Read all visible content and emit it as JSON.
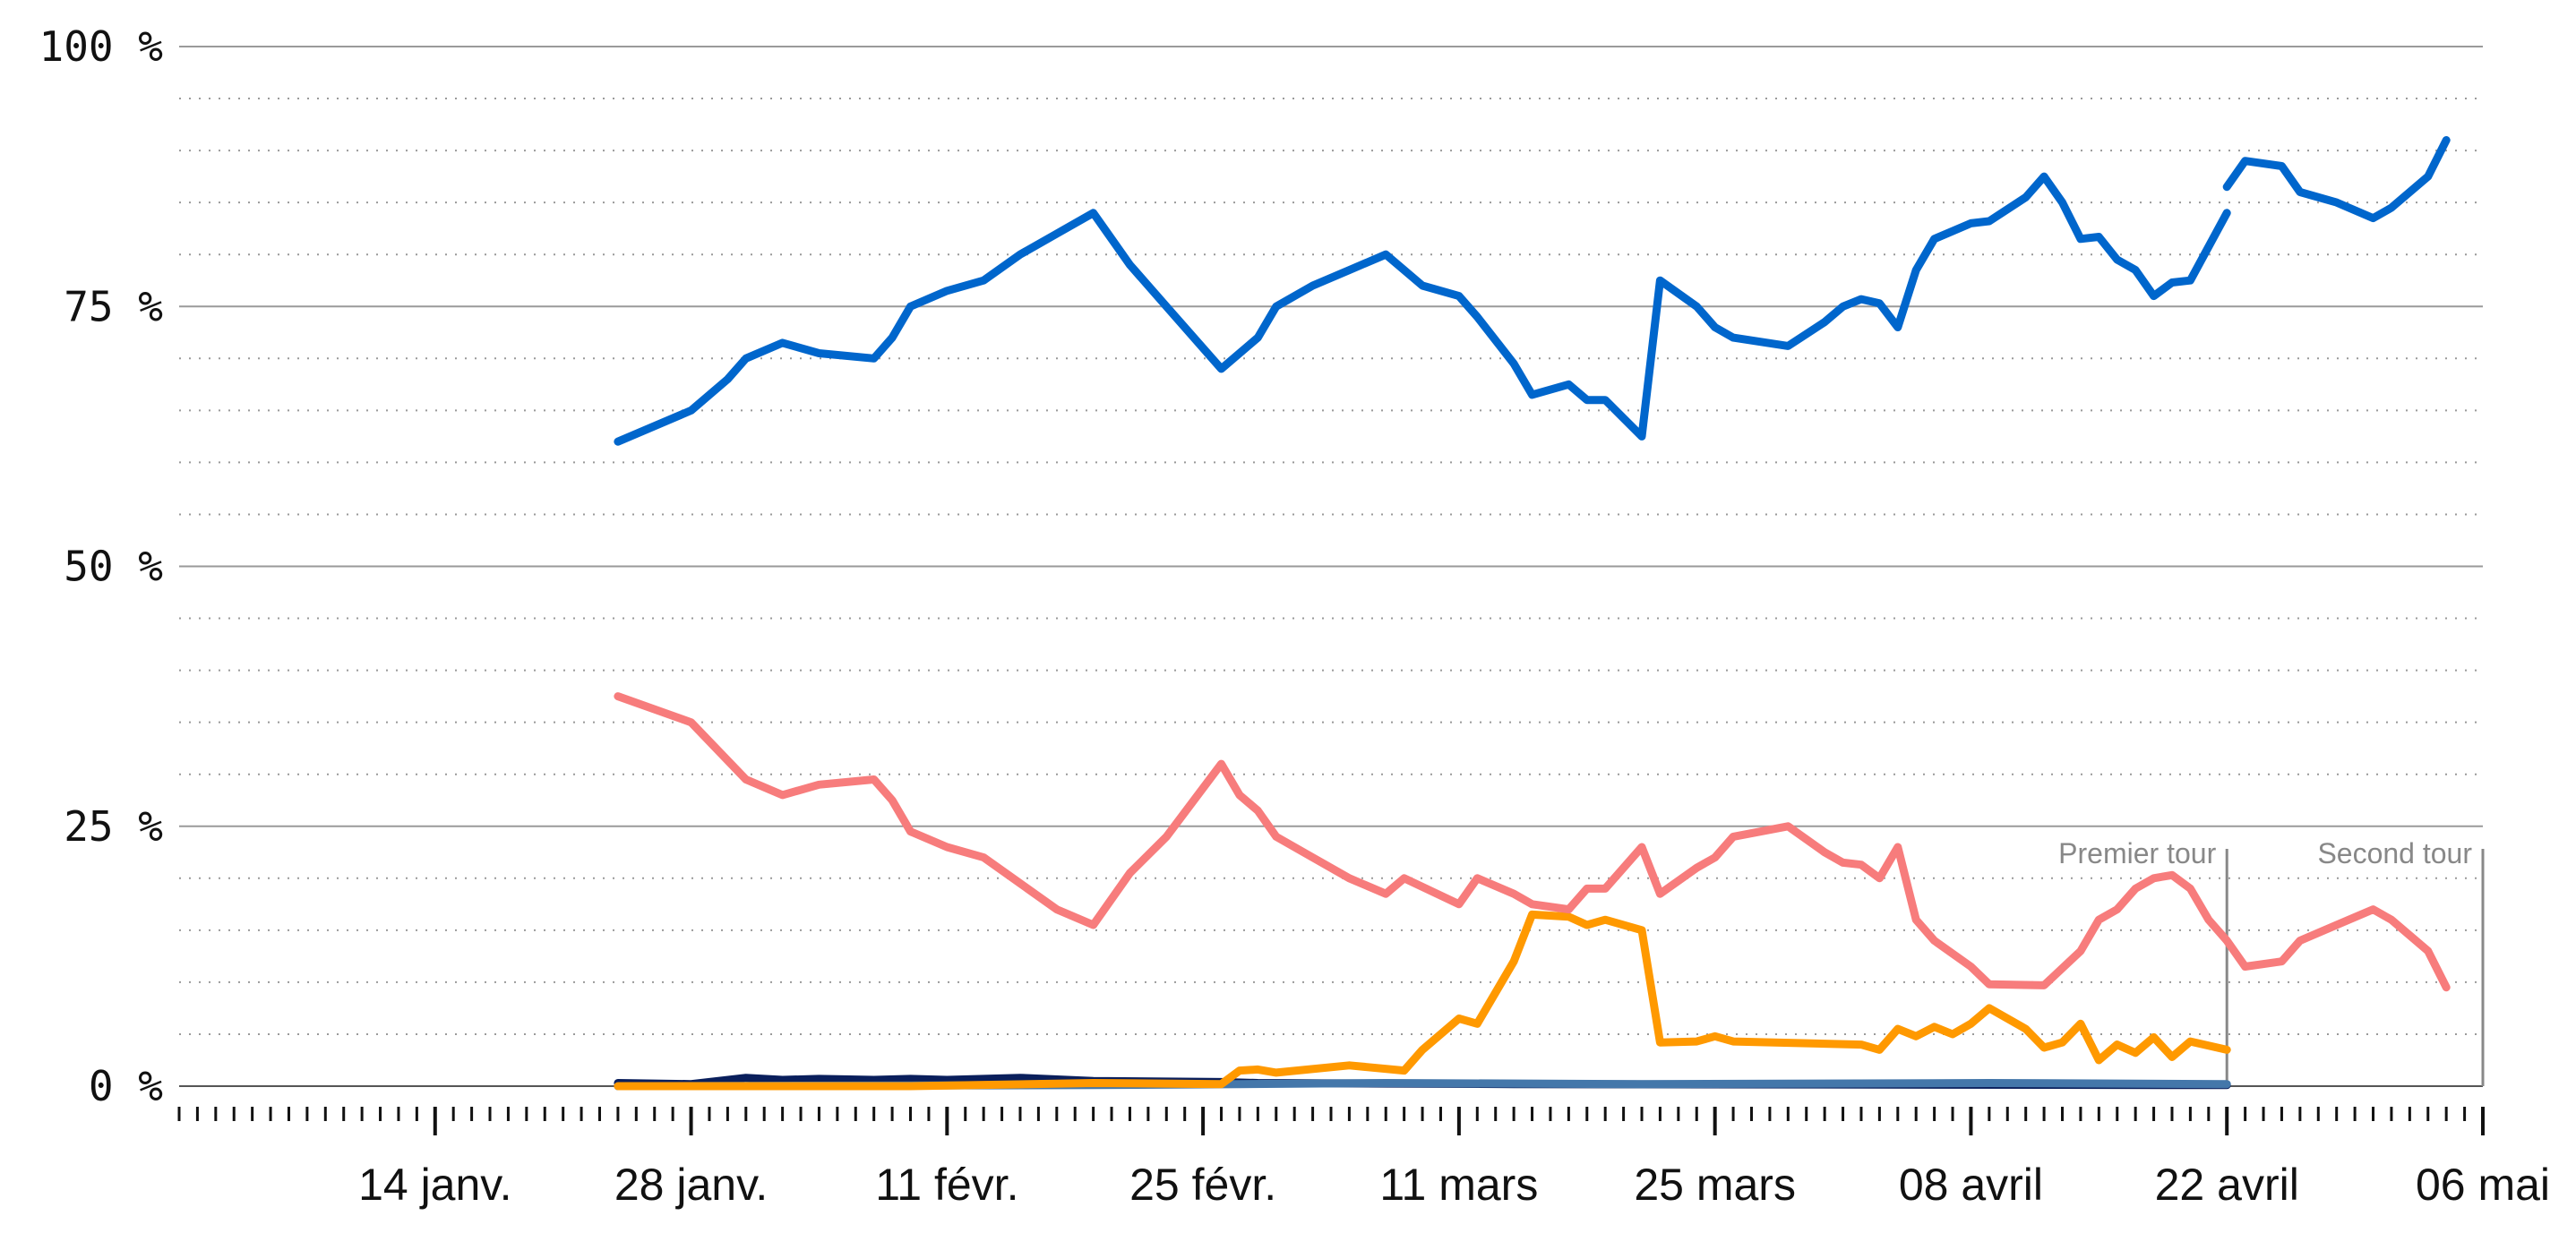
{
  "chart_data": {
    "type": "line",
    "title": "",
    "xlabel": "",
    "ylabel": "",
    "ylim": [
      0,
      100
    ],
    "xlim": [
      "2017-01-01",
      "2017-05-07"
    ],
    "grid": true,
    "legend": "none",
    "y_ticks": [
      {
        "value": 0,
        "label": "0 %"
      },
      {
        "value": 25,
        "label": "25 %"
      },
      {
        "value": 50,
        "label": "50 %"
      },
      {
        "value": 75,
        "label": "75 %"
      },
      {
        "value": 100,
        "label": "100 %"
      }
    ],
    "x_ticks": [
      {
        "date": "2017-01-15",
        "label": "14 janv."
      },
      {
        "date": "2017-01-29",
        "label": "28 janv."
      },
      {
        "date": "2017-02-12",
        "label": "11 févr."
      },
      {
        "date": "2017-02-26",
        "label": "25 févr."
      },
      {
        "date": "2017-03-12",
        "label": "11 mars"
      },
      {
        "date": "2017-03-26",
        "label": "25 mars"
      },
      {
        "date": "2017-04-09",
        "label": "08 avril"
      },
      {
        "date": "2017-04-23",
        "label": "22 avril"
      },
      {
        "date": "2017-05-07",
        "label": "06 mai"
      }
    ],
    "annotations": [
      {
        "date": "2017-04-23",
        "label": "Premier tour"
      },
      {
        "date": "2017-05-07",
        "label": "Second tour"
      }
    ],
    "series": [
      {
        "color": "#0066cc",
        "segments": [
          [
            [
              "2017-01-25",
              62
            ],
            [
              "2017-01-29",
              65
            ],
            [
              "2017-01-31",
              68
            ],
            [
              "2017-02-01",
              70
            ],
            [
              "2017-02-03",
              71.5
            ],
            [
              "2017-02-05",
              70.5
            ],
            [
              "2017-02-08",
              70
            ],
            [
              "2017-02-09",
              72
            ],
            [
              "2017-02-10",
              75
            ],
            [
              "2017-02-12",
              76.5
            ],
            [
              "2017-02-14",
              77.5
            ],
            [
              "2017-02-16",
              80
            ],
            [
              "2017-02-18",
              82
            ],
            [
              "2017-02-20",
              84
            ],
            [
              "2017-02-22",
              79
            ],
            [
              "2017-02-24",
              75
            ],
            [
              "2017-02-27",
              69
            ],
            [
              "2017-03-01",
              72
            ],
            [
              "2017-03-02",
              75
            ],
            [
              "2017-03-04",
              77
            ],
            [
              "2017-03-06",
              78.5
            ],
            [
              "2017-03-08",
              80
            ],
            [
              "2017-03-10",
              77
            ],
            [
              "2017-03-12",
              76
            ],
            [
              "2017-03-13",
              74
            ],
            [
              "2017-03-15",
              69.5
            ],
            [
              "2017-03-16",
              66.5
            ],
            [
              "2017-03-18",
              67.5
            ],
            [
              "2017-03-19",
              66
            ],
            [
              "2017-03-20",
              66
            ],
            [
              "2017-03-22",
              62.5
            ],
            [
              "2017-03-23",
              77.5
            ],
            [
              "2017-03-25",
              75
            ],
            [
              "2017-03-26",
              73
            ],
            [
              "2017-03-27",
              72
            ],
            [
              "2017-03-30",
              71.2
            ],
            [
              "2017-04-01",
              73.5
            ],
            [
              "2017-04-02",
              75
            ],
            [
              "2017-04-03",
              75.7
            ],
            [
              "2017-04-04",
              75.3
            ],
            [
              "2017-04-05",
              73
            ],
            [
              "2017-04-06",
              78.5
            ],
            [
              "2017-04-07",
              81.5
            ],
            [
              "2017-04-09",
              83
            ],
            [
              "2017-04-10",
              83.2
            ],
            [
              "2017-04-12",
              85.5
            ],
            [
              "2017-04-13",
              87.5
            ],
            [
              "2017-04-14",
              85
            ],
            [
              "2017-04-15",
              81.5
            ],
            [
              "2017-04-16",
              81.7
            ],
            [
              "2017-04-17",
              79.5
            ],
            [
              "2017-04-18",
              78.5
            ],
            [
              "2017-04-19",
              76
            ],
            [
              "2017-04-20",
              77.3
            ],
            [
              "2017-04-21",
              77.5
            ],
            [
              "2017-04-23",
              84
            ]
          ],
          [
            [
              "2017-04-23",
              86.5
            ],
            [
              "2017-04-24",
              89
            ],
            [
              "2017-04-26",
              88.5
            ],
            [
              "2017-04-27",
              86
            ],
            [
              "2017-04-29",
              85
            ],
            [
              "2017-05-01",
              83.5
            ],
            [
              "2017-05-02",
              84.5
            ],
            [
              "2017-05-04",
              87.5
            ],
            [
              "2017-05-05",
              91
            ]
          ]
        ]
      },
      {
        "color": "#f77c7c",
        "segments": [
          [
            [
              "2017-01-25",
              37.5
            ],
            [
              "2017-01-29",
              35
            ],
            [
              "2017-02-01",
              29.5
            ],
            [
              "2017-02-03",
              28
            ],
            [
              "2017-02-05",
              29
            ],
            [
              "2017-02-08",
              29.5
            ],
            [
              "2017-02-09",
              27.5
            ],
            [
              "2017-02-10",
              24.5
            ],
            [
              "2017-02-12",
              23
            ],
            [
              "2017-02-14",
              22
            ],
            [
              "2017-02-16",
              19.5
            ],
            [
              "2017-02-18",
              17
            ],
            [
              "2017-02-20",
              15.5
            ],
            [
              "2017-02-22",
              20.5
            ],
            [
              "2017-02-24",
              24
            ],
            [
              "2017-02-27",
              31
            ],
            [
              "2017-02-28",
              28
            ],
            [
              "2017-03-01",
              26.5
            ],
            [
              "2017-03-02",
              24
            ],
            [
              "2017-03-04",
              22
            ],
            [
              "2017-03-06",
              20
            ],
            [
              "2017-03-08",
              18.5
            ],
            [
              "2017-03-09",
              20
            ],
            [
              "2017-03-12",
              17.5
            ],
            [
              "2017-03-13",
              20
            ],
            [
              "2017-03-15",
              18.5
            ],
            [
              "2017-03-16",
              17.5
            ],
            [
              "2017-03-18",
              17
            ],
            [
              "2017-03-19",
              19
            ],
            [
              "2017-03-20",
              19
            ],
            [
              "2017-03-22",
              23
            ],
            [
              "2017-03-23",
              18.5
            ],
            [
              "2017-03-25",
              21
            ],
            [
              "2017-03-26",
              22
            ],
            [
              "2017-03-27",
              24
            ],
            [
              "2017-03-30",
              25
            ],
            [
              "2017-04-01",
              22.5
            ],
            [
              "2017-04-02",
              21.5
            ],
            [
              "2017-04-03",
              21.3
            ],
            [
              "2017-04-04",
              20
            ],
            [
              "2017-04-05",
              23
            ],
            [
              "2017-04-06",
              16
            ],
            [
              "2017-04-07",
              14
            ],
            [
              "2017-04-09",
              11.5
            ],
            [
              "2017-04-10",
              9.8
            ],
            [
              "2017-04-13",
              9.7
            ],
            [
              "2017-04-15",
              13
            ],
            [
              "2017-04-16",
              16
            ],
            [
              "2017-04-17",
              17
            ],
            [
              "2017-04-18",
              19
            ],
            [
              "2017-04-19",
              20
            ],
            [
              "2017-04-20",
              20.3
            ],
            [
              "2017-04-21",
              19
            ],
            [
              "2017-04-22",
              16
            ],
            [
              "2017-04-23",
              14
            ],
            [
              "2017-04-24",
              11.5
            ],
            [
              "2017-04-26",
              12
            ],
            [
              "2017-04-27",
              14
            ],
            [
              "2017-04-29",
              15.5
            ],
            [
              "2017-05-01",
              17
            ],
            [
              "2017-05-02",
              16
            ],
            [
              "2017-05-04",
              13
            ],
            [
              "2017-05-05",
              9.5
            ]
          ]
        ]
      },
      {
        "color": "#ff9900",
        "segments": [
          [
            [
              "2017-01-25",
              0
            ],
            [
              "2017-02-10",
              0
            ],
            [
              "2017-02-20",
              0.3
            ],
            [
              "2017-02-27",
              0.2
            ],
            [
              "2017-02-28",
              1.5
            ],
            [
              "2017-03-01",
              1.6
            ],
            [
              "2017-03-02",
              1.3
            ],
            [
              "2017-03-06",
              2
            ],
            [
              "2017-03-09",
              1.5
            ],
            [
              "2017-03-10",
              3.5
            ],
            [
              "2017-03-12",
              6.5
            ],
            [
              "2017-03-13",
              6
            ],
            [
              "2017-03-15",
              12
            ],
            [
              "2017-03-16",
              16.5
            ],
            [
              "2017-03-18",
              16.3
            ],
            [
              "2017-03-19",
              15.5
            ],
            [
              "2017-03-20",
              16
            ],
            [
              "2017-03-22",
              15
            ],
            [
              "2017-03-23",
              4.2
            ],
            [
              "2017-03-25",
              4.3
            ],
            [
              "2017-03-26",
              4.8
            ],
            [
              "2017-03-27",
              4.3
            ],
            [
              "2017-04-03",
              4
            ],
            [
              "2017-04-04",
              3.5
            ],
            [
              "2017-04-05",
              5.5
            ],
            [
              "2017-04-06",
              4.8
            ],
            [
              "2017-04-07",
              5.7
            ],
            [
              "2017-04-08",
              5
            ],
            [
              "2017-04-09",
              6
            ],
            [
              "2017-04-10",
              7.5
            ],
            [
              "2017-04-12",
              5.5
            ],
            [
              "2017-04-13",
              3.7
            ],
            [
              "2017-04-14",
              4.2
            ],
            [
              "2017-04-15",
              6
            ],
            [
              "2017-04-16",
              2.5
            ],
            [
              "2017-04-17",
              4
            ],
            [
              "2017-04-18",
              3.2
            ],
            [
              "2017-04-19",
              4.7
            ],
            [
              "2017-04-20",
              2.8
            ],
            [
              "2017-04-21",
              4.3
            ],
            [
              "2017-04-23",
              3.5
            ]
          ]
        ]
      },
      {
        "color": "#0a1f5c",
        "segments": [
          [
            [
              "2017-01-25",
              0.3
            ],
            [
              "2017-01-29",
              0.2
            ],
            [
              "2017-02-01",
              0.8
            ],
            [
              "2017-02-03",
              0.6
            ],
            [
              "2017-02-05",
              0.7
            ],
            [
              "2017-02-08",
              0.6
            ],
            [
              "2017-02-10",
              0.7
            ],
            [
              "2017-02-12",
              0.6
            ],
            [
              "2017-02-16",
              0.8
            ],
            [
              "2017-02-20",
              0.5
            ],
            [
              "2017-02-27",
              0.4
            ],
            [
              "2017-03-01",
              0.3
            ],
            [
              "2017-03-15",
              0.2
            ],
            [
              "2017-04-23",
              0.1
            ]
          ]
        ]
      },
      {
        "color": "#4477aa",
        "segments": [
          [
            [
              "2017-01-25",
              0
            ],
            [
              "2017-02-20",
              0.1
            ],
            [
              "2017-02-28",
              0.2
            ],
            [
              "2017-03-08",
              0.3
            ],
            [
              "2017-03-22",
              0.2
            ],
            [
              "2017-04-10",
              0.3
            ],
            [
              "2017-04-23",
              0.2
            ]
          ]
        ]
      }
    ]
  }
}
